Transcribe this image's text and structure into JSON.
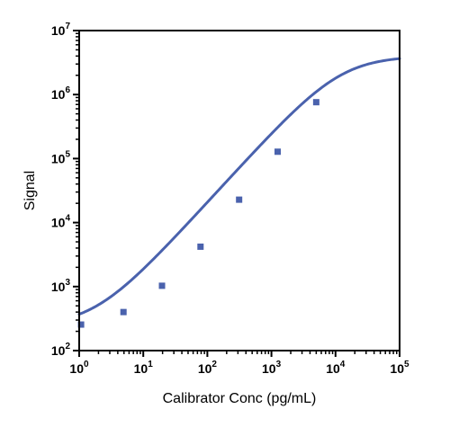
{
  "chart_data": {
    "type": "scatter",
    "title": "",
    "xlabel": "Calibrator Conc (pg/mL)",
    "ylabel": "Signal",
    "x_scale": "log",
    "y_scale": "log",
    "xlim": [
      1,
      100000
    ],
    "ylim": [
      100,
      10000000
    ],
    "grid": false,
    "legend": "none",
    "x_ticks": [
      {
        "base": "10",
        "exp": "0",
        "value": 1
      },
      {
        "base": "10",
        "exp": "1",
        "value": 10
      },
      {
        "base": "10",
        "exp": "2",
        "value": 100
      },
      {
        "base": "10",
        "exp": "3",
        "value": 1000
      },
      {
        "base": "10",
        "exp": "4",
        "value": 10000
      },
      {
        "base": "10",
        "exp": "5",
        "value": 100000
      }
    ],
    "y_ticks": [
      {
        "base": "10",
        "exp": "2",
        "value": 100
      },
      {
        "base": "10",
        "exp": "3",
        "value": 1000
      },
      {
        "base": "10",
        "exp": "4",
        "value": 10000
      },
      {
        "base": "10",
        "exp": "5",
        "value": 100000
      },
      {
        "base": "10",
        "exp": "6",
        "value": 1000000
      },
      {
        "base": "10",
        "exp": "7",
        "value": 10000000
      }
    ],
    "series": [
      {
        "marker": "square",
        "color": "#4a62ad",
        "x": [
          1.07,
          4.91,
          19.6,
          78.2,
          313,
          1250,
          5000
        ],
        "y": [
          255,
          400,
          1030,
          4200,
          22800,
          128000,
          760000
        ]
      }
    ],
    "fit_curve": {
      "color": "#4a62ad",
      "model": "4PL",
      "bottom": 240,
      "top": 4000000,
      "ec50": 12000,
      "hill": 1.1
    }
  }
}
